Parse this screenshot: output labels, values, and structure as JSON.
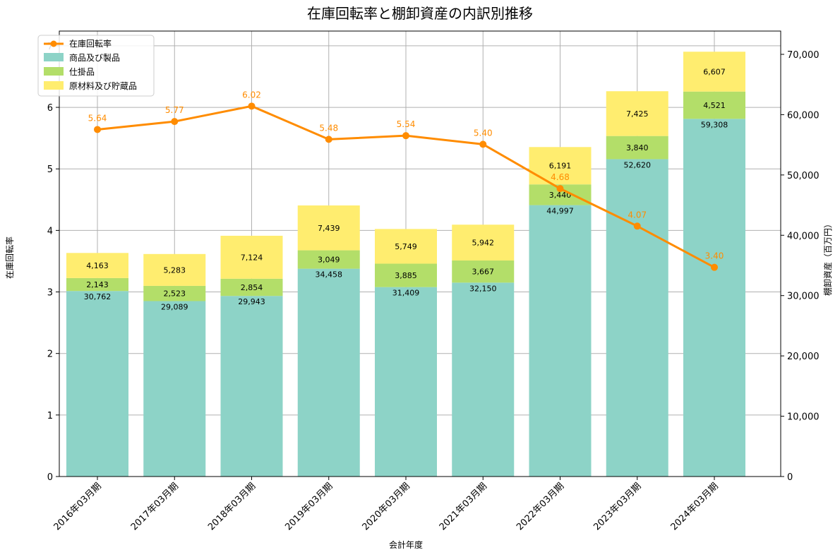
{
  "chart_data": {
    "type": "bar",
    "title": "在庫回転率と棚卸資産の内訳別推移",
    "xlabel": "会計年度",
    "ylabel_left": "在庫回転率",
    "ylabel_right": "棚卸資産（百万円）",
    "categories": [
      "2016年03月期",
      "2017年03月期",
      "2018年03月期",
      "2019年03月期",
      "2020年03月期",
      "2021年03月期",
      "2022年03月期",
      "2023年03月期",
      "2024年03月期"
    ],
    "bar_series": [
      {
        "name": "商品及び製品",
        "color": "#8dd3c7",
        "values": [
          30762,
          29089,
          29943,
          34458,
          31409,
          32150,
          44997,
          52620,
          59308
        ]
      },
      {
        "name": "仕掛品",
        "color": "#b3de69",
        "values": [
          2143,
          2523,
          2854,
          3049,
          3885,
          3667,
          3440,
          3840,
          4521
        ]
      },
      {
        "name": "原材料及び貯蔵品",
        "color": "#ffed6f",
        "values": [
          4163,
          5283,
          7124,
          7439,
          5749,
          5942,
          6191,
          7425,
          6607
        ]
      }
    ],
    "line_series": {
      "name": "在庫回転率",
      "color": "#ff8c00",
      "values": [
        5.64,
        5.77,
        6.02,
        5.48,
        5.54,
        5.4,
        4.68,
        4.07,
        3.4
      ]
    },
    "left_axis": {
      "ylim": [
        0,
        7.24
      ],
      "ticks": [
        "0",
        "1",
        "2",
        "3",
        "4",
        "5",
        "6",
        "7"
      ]
    },
    "right_axis": {
      "ylim": [
        0,
        73860
      ],
      "ticks": [
        "0",
        "10,000",
        "20,000",
        "30,000",
        "40,000",
        "50,000",
        "60,000",
        "70,000"
      ]
    },
    "bar_labels": [
      [
        "30,762",
        "29,089",
        "29,943",
        "34,458",
        "31,409",
        "32,150",
        "44,997",
        "52,620",
        "59,308"
      ],
      [
        "2,143",
        "2,523",
        "2,854",
        "3,049",
        "3,885",
        "3,667",
        "3,440",
        "3,840",
        "4,521"
      ],
      [
        "4,163",
        "5,283",
        "7,124",
        "7,439",
        "5,749",
        "5,942",
        "6,191",
        "7,425",
        "6,607"
      ]
    ],
    "line_labels": [
      "5.64",
      "5.77",
      "6.02",
      "5.48",
      "5.54",
      "5.40",
      "4.68",
      "4.07",
      "3.40"
    ],
    "grid": true,
    "legend_position": "top-left"
  }
}
